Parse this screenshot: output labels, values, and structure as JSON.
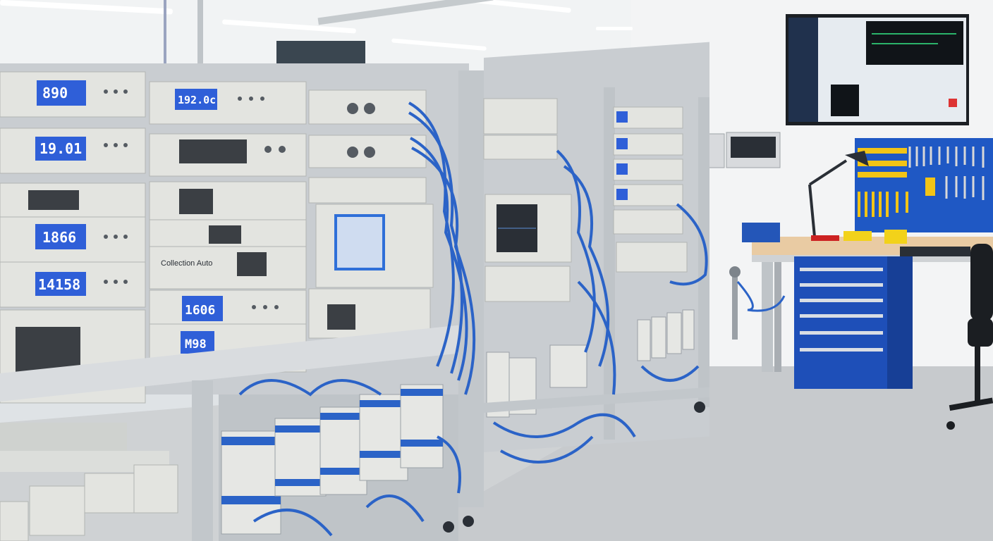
{
  "scene": {
    "description_kind": "photo",
    "colors": {
      "wall": "#eef0f1",
      "ceiling": "#f4f5f6",
      "floor": "#c9cccf",
      "rack_frame": "#b8bdc2",
      "instrument_face": "#dadcd8",
      "lcd_blue": "#2f5fd8",
      "cable_blue": "#2b63c7",
      "tool_board": "#1f58c4",
      "cabinet_blue": "#1e4fb8",
      "bench_top": "#e8c9a0"
    }
  },
  "displays": {
    "readouts": [
      {
        "id": "r1",
        "text": "890"
      },
      {
        "id": "r2",
        "text": "192.0c"
      },
      {
        "id": "r3",
        "text": "19.01"
      },
      {
        "id": "r4",
        "text": "1866"
      },
      {
        "id": "r5",
        "text": "14158"
      },
      {
        "id": "r6",
        "text": "1606"
      },
      {
        "id": "r7",
        "text": "M98"
      }
    ],
    "panel_label": "Collection Auto"
  },
  "icons": [
    "ceiling-light-icon",
    "desk-lamp-icon",
    "bench-vise-icon",
    "office-chair-icon",
    "wrench-icon"
  ]
}
